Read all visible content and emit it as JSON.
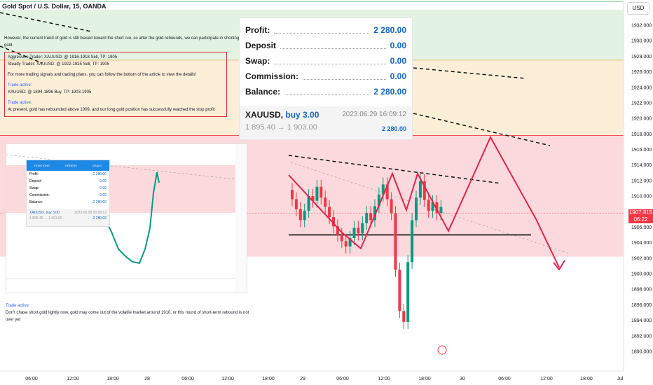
{
  "header": {
    "title": "Gold Spot / U.S. Dollar, 15, OANDA",
    "currency_button": "USD"
  },
  "article": {
    "intro": "However, the current trend of gold is still biased toward the short run, so after the gold rebounds, we can participate in shorting gold.",
    "aggressive": "Aggressive Trader: XAUUSD: @ 1916-1918 Sell, TP: 1905",
    "steady": "Steady Trader: XAUUSD: @ 1922-1925 Sell, TP: 1905",
    "more": "For more trading signals and trading plans, you can follow the bottom of the article to view the details!",
    "trade_active_1": "Trade active:",
    "trade_1": "XAUUSD: @ 1894-1896 Buy, TP: 1903-1905",
    "trade_active_2": "Trade active:",
    "trade_2": "At present, gold has rebounded above 1909, and our long gold position has successfully reached the stop profit",
    "trade_active_3": "Trade active:",
    "trade_3": "Don't chase short gold lightly now, gold may come out of the volatile market around 1910, or this round of short-term rebound is not over yet"
  },
  "trade_card": {
    "rows": [
      {
        "label": "Profit:",
        "value": "2 280.00"
      },
      {
        "label": "Deposit",
        "value": "0.00"
      },
      {
        "label": "Swap:",
        "value": "0.00"
      },
      {
        "label": "Commission:",
        "value": "0.00"
      },
      {
        "label": "Balance:",
        "value": "2 280.00"
      }
    ],
    "symbol": "XAUUSD,",
    "side": "buy 3.00",
    "datetime": "2023.06.29 16:09:12",
    "prices": "1 895.40 → 1 903.00",
    "pnl": "2 280.00"
  },
  "mini_card": {
    "tabs": [
      "POSITIONS",
      "ORDERS",
      "DEALS"
    ],
    "rows": [
      {
        "label": "Profit:",
        "value": "2 280.00"
      },
      {
        "label": "Deposit",
        "value": "0.00"
      },
      {
        "label": "Swap:",
        "value": "0.00"
      },
      {
        "label": "Commission:",
        "value": "0.00"
      },
      {
        "label": "Balance:",
        "value": "2 280.00"
      }
    ],
    "symbol": "XAUUSD, buy 3.00",
    "datetime": "2023.06.29 16:09:12",
    "prices": "1 895.40 → 1 903.00",
    "pnl": "2 280.00"
  },
  "price_tag": {
    "price": "1907.815",
    "countdown": "06:22"
  },
  "colors": {
    "up": "#089981",
    "down": "#f23645",
    "pattern": "#e0244d",
    "green_zone": "#e3f3e3",
    "orange_zone": "#fdeed8",
    "red_zone": "#fbd9dc"
  },
  "chart_data": {
    "type": "candlestick",
    "y_ticks": [
      "1932.000",
      "1930.000",
      "1928.000",
      "1926.000",
      "1924.000",
      "1922.000",
      "1920.000",
      "1918.000",
      "1916.000",
      "1914.000",
      "1912.000",
      "1910.000",
      "1908.000",
      "1906.000",
      "1904.000",
      "1902.000",
      "1900.000",
      "1898.000",
      "1896.000",
      "1894.000",
      "1892.000",
      "1890.000"
    ],
    "x_ticks": [
      "06:00",
      "12:00",
      "18:00",
      "28",
      "06:00",
      "12:00",
      "18:00",
      "29",
      "06:00",
      "12:00",
      "18:00",
      "30",
      "06:00",
      "12:00",
      "18:00",
      "Jul"
    ],
    "ylim": [
      1889,
      1934
    ],
    "zones": [
      {
        "name": "green",
        "from": 1927.5,
        "to": 1934
      },
      {
        "name": "orange",
        "from": 1917.8,
        "to": 1927.5
      },
      {
        "name": "red",
        "from": 1902.2,
        "to": 1917.8
      }
    ],
    "candles_close": [
      1909.6,
      1908.3,
      1906.9,
      1908.1,
      1910.0,
      1909.4,
      1911.2,
      1909.8,
      1908.6,
      1907.3,
      1906.1,
      1905.0,
      1904.2,
      1903.5,
      1904.6,
      1905.9,
      1905.2,
      1906.5,
      1907.8,
      1906.9,
      1908.7,
      1910.2,
      1911.5,
      1909.6,
      1907.8,
      1900.5,
      1895.2,
      1893.8,
      1901.5,
      1906.9,
      1909.8,
      1911.9,
      1909.5,
      1908.1,
      1909.2,
      1907.8,
      1908.6
    ],
    "support_level": 1905.0,
    "last_price": 1907.815
  }
}
